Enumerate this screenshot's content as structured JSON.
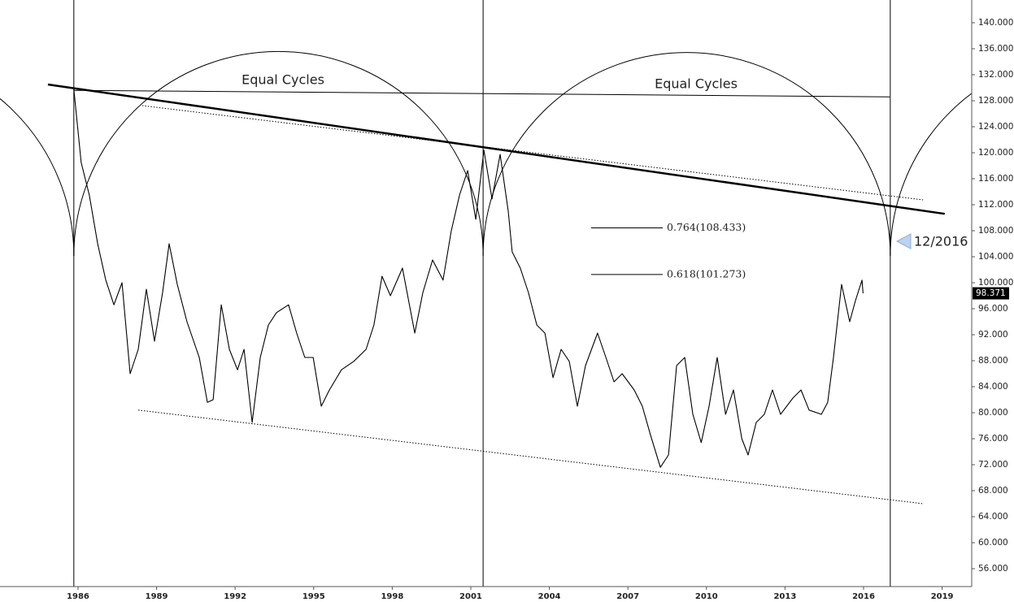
{
  "chart_data": {
    "type": "line",
    "xlim": [
      1983.02,
      2020.13
    ],
    "ylim": [
      53.25,
      143.5
    ],
    "xticks": [
      1986,
      1989,
      1992,
      1995,
      1998,
      2001,
      2004,
      2007,
      2010,
      2013,
      2016,
      2019
    ],
    "yticks": [
      {
        "value": 56,
        "label": "56.000"
      },
      {
        "value": 60,
        "label": "60.000"
      },
      {
        "value": 64,
        "label": "64.000"
      },
      {
        "value": 68,
        "label": "68.000"
      },
      {
        "value": 72,
        "label": "72.000"
      },
      {
        "value": 76,
        "label": "76.000"
      },
      {
        "value": 80,
        "label": "80.000"
      },
      {
        "value": 84,
        "label": "84.000"
      },
      {
        "value": 88,
        "label": "88.000"
      },
      {
        "value": 92,
        "label": "92.000"
      },
      {
        "value": 96,
        "label": "96.000"
      },
      {
        "value": 100,
        "label": "100.000"
      },
      {
        "value": 104,
        "label": "104.000"
      },
      {
        "value": 108,
        "label": "108.000"
      },
      {
        "value": 112,
        "label": "112.000"
      },
      {
        "value": 116,
        "label": "116.000"
      },
      {
        "value": 120,
        "label": "120.000"
      },
      {
        "value": 124,
        "label": "124.000"
      },
      {
        "value": 128,
        "label": "128.000"
      },
      {
        "value": 132,
        "label": "132.000"
      },
      {
        "value": 136,
        "label": "136.000"
      },
      {
        "value": 140,
        "label": "140.000"
      }
    ],
    "series": [
      {
        "color": "#000000",
        "x": [
          1985.84,
          1986.12,
          1986.43,
          1986.75,
          1987.06,
          1987.37,
          1987.68,
          1987.99,
          1988.3,
          1988.61,
          1988.92,
          1989.23,
          1989.48,
          1989.79,
          1990.16,
          1990.63,
          1990.94,
          1991.16,
          1991.47,
          1991.78,
          1992.09,
          1992.34,
          1992.65,
          1992.96,
          1993.27,
          1993.58,
          1994.04,
          1994.35,
          1994.66,
          1994.98,
          1995.29,
          1995.6,
          1996.06,
          1996.53,
          1997.0,
          1997.3,
          1997.61,
          1997.93,
          1998.39,
          1998.86,
          1999.17,
          1999.54,
          1999.94,
          2000.25,
          2000.57,
          2000.88,
          2001.19,
          2001.5,
          2001.81,
          2002.12,
          2002.43,
          2002.58,
          2002.89,
          2003.2,
          2003.52,
          2003.83,
          2004.14,
          2004.45,
          2004.76,
          2005.07,
          2005.38,
          2005.84,
          2006.16,
          2006.47,
          2006.78,
          2007.24,
          2007.55,
          2007.86,
          2008.24,
          2008.55,
          2008.86,
          2009.17,
          2009.48,
          2009.8,
          2010.1,
          2010.41,
          2010.73,
          2011.03,
          2011.35,
          2011.59,
          2011.9,
          2012.21,
          2012.52,
          2012.83,
          2013.3,
          2013.61,
          2013.92,
          2014.39,
          2014.63,
          2014.85,
          2015.16,
          2015.47,
          2015.69,
          2015.94,
          2015.98
        ],
        "values": [
          129.75,
          118.5,
          113.5,
          106,
          100.4,
          96.6,
          100,
          86,
          89.75,
          99,
          91,
          98.5,
          106,
          99.75,
          94,
          88.5,
          81.6,
          82,
          96.6,
          89.75,
          86.6,
          89.75,
          78.5,
          88.5,
          93.5,
          95.4,
          96.6,
          92.25,
          88.5,
          88.5,
          81,
          83.5,
          86.6,
          87.9,
          89.75,
          93.5,
          101,
          98,
          102.25,
          92.25,
          98.5,
          103.5,
          100.4,
          107.9,
          113.5,
          117.25,
          109.75,
          120.4,
          112.9,
          119.75,
          111,
          104.75,
          102.25,
          98.5,
          93.5,
          92.25,
          85.4,
          89.75,
          87.9,
          81,
          87.25,
          92.25,
          88.5,
          84.75,
          86,
          83.5,
          81,
          76.6,
          71.6,
          73.5,
          87.25,
          88.5,
          79.75,
          75.4,
          81,
          88.5,
          79.75,
          83.5,
          76,
          73.5,
          78.5,
          79.75,
          83.5,
          79.75,
          82.25,
          83.5,
          80.4,
          79.75,
          81.6,
          88.5,
          99.75,
          94,
          97.25,
          100.4,
          98.371
        ]
      }
    ],
    "last_price": 98.371,
    "cycle_lines": [
      1985.84,
      2001.47,
      2017.02
    ],
    "trendlines": [
      {
        "x": [
          1984.85,
          2019.1
        ],
        "y": [
          130.5,
          110.6
        ],
        "style": "solid",
        "width": 2.5
      },
      {
        "x": [
          1985.84,
          2017.0
        ],
        "y": [
          129.6,
          128.6
        ],
        "style": "solid",
        "width": 1
      },
      {
        "x": [
          1988.45,
          2018.27
        ],
        "y": [
          127.25,
          112.75
        ],
        "style": "dotted",
        "width": 1
      },
      {
        "x": [
          1988.3,
          2018.27
        ],
        "y": [
          80.4,
          66
        ],
        "style": "dotted",
        "width": 1
      }
    ],
    "fib_levels": [
      {
        "value": 108.433,
        "label": "0.764(108.433)"
      },
      {
        "value": 101.273,
        "label": "0.618(101.273)"
      }
    ],
    "annotations": [
      "Equal Cycles",
      "Equal Cycles",
      "12/2016"
    ]
  }
}
